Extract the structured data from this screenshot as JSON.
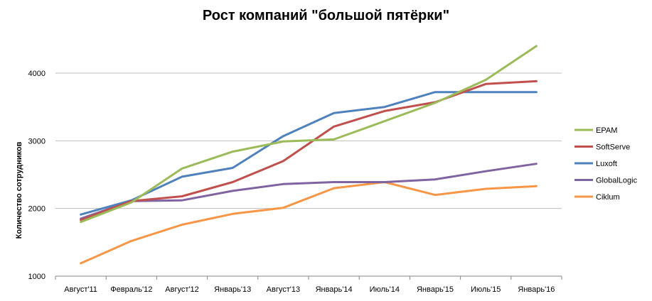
{
  "chart_data": {
    "type": "line",
    "title": "Рост компаний \"большой пятёрки\"",
    "xlabel": "",
    "ylabel": "Количество сотрудников",
    "categories": [
      "Август'11",
      "Февраль'12",
      "Август'12",
      "Январь'13",
      "Август'13",
      "Январь'14",
      "Июль'14",
      "Январь'15",
      "Июль'15",
      "Январь'16"
    ],
    "ylim": [
      1000,
      4500
    ],
    "yticks": [
      1000,
      2000,
      3000,
      4000
    ],
    "grid": true,
    "legend_position": "right",
    "series": [
      {
        "name": "EPAM",
        "color": "#9bbb59",
        "values": [
          1800,
          2090,
          2590,
          2840,
          2990,
          3020,
          3290,
          3560,
          3900,
          4400
        ]
      },
      {
        "name": "SoftServe",
        "color": "#c0504d",
        "values": [
          1830,
          2110,
          2180,
          2390,
          2700,
          3210,
          3440,
          3570,
          3840,
          3880
        ]
      },
      {
        "name": "Luxoft",
        "color": "#4f81bd",
        "values": [
          1910,
          2120,
          2470,
          2600,
          3070,
          3410,
          3500,
          3720,
          3720,
          3720
        ]
      },
      {
        "name": "GlobalLogic",
        "color": "#8064a2",
        "values": [
          1850,
          2110,
          2120,
          2260,
          2360,
          2390,
          2390,
          2430,
          2550,
          2660
        ]
      },
      {
        "name": "Ciklum",
        "color": "#f79646",
        "values": [
          1190,
          1520,
          1760,
          1920,
          2010,
          2300,
          2390,
          2200,
          2290,
          2330
        ]
      }
    ]
  }
}
